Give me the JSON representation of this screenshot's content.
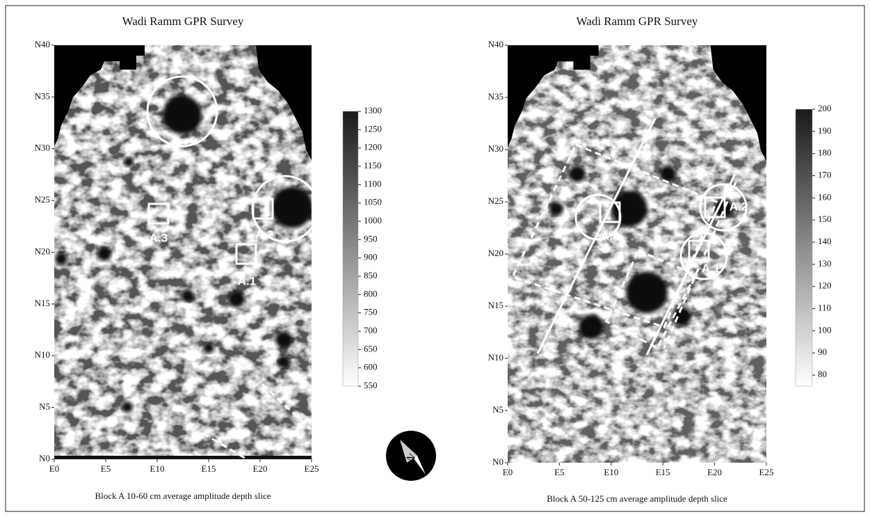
{
  "panels": [
    {
      "title": "Wadi Ramm GPR Survey",
      "caption": "Block A 10-60 cm average amplitude depth slice",
      "x_labels": [
        "E0",
        "E5",
        "E10",
        "E15",
        "E20",
        "E25"
      ],
      "y_labels": [
        "N0",
        "N5",
        "N10",
        "N15",
        "N20",
        "N25",
        "N30",
        "N35",
        "N40"
      ],
      "colorbar": {
        "range": [
          550,
          1300
        ],
        "ticks": [
          550,
          600,
          650,
          700,
          750,
          800,
          850,
          900,
          950,
          1000,
          1050,
          1100,
          1150,
          1200,
          1250,
          1300
        ]
      },
      "annotations": [
        "A.1",
        "A.2",
        "A.3"
      ]
    },
    {
      "title": "Wadi Ramm GPR Survey",
      "caption": "Block A 50-125 cm average amplitude depth slice",
      "x_labels": [
        "E0",
        "E5",
        "E10",
        "E15",
        "E20",
        "E25"
      ],
      "y_labels": [
        "N0",
        "N5",
        "N10",
        "N15",
        "N20",
        "N25",
        "N30",
        "N35",
        "N40"
      ],
      "colorbar": {
        "range": [
          75,
          200
        ],
        "ticks": [
          80,
          90,
          100,
          110,
          120,
          130,
          140,
          150,
          160,
          170,
          180,
          190,
          200
        ]
      },
      "annotations": [
        "A.1",
        "A.2",
        "A.3"
      ]
    }
  ],
  "compass": "N"
}
